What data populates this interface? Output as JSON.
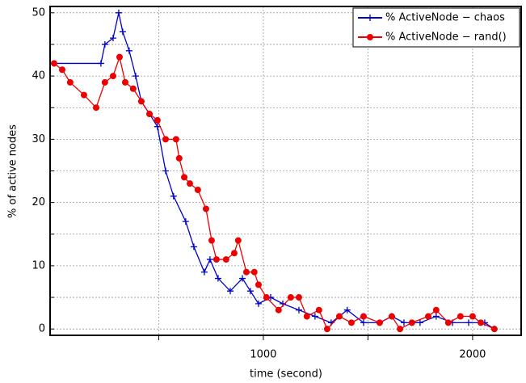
{
  "chart_data": {
    "type": "line",
    "xlabel": "time (second)",
    "ylabel": "% of active nodes",
    "xlim": [
      -19,
      2232
    ],
    "ylim": [
      -1,
      51
    ],
    "xticks": [
      1000,
      2000
    ],
    "x_minor_ticks": [
      500,
      1500
    ],
    "yticks": [
      0,
      10,
      20,
      30,
      40,
      50
    ],
    "y_minor_ticks": [
      5,
      15,
      25,
      35,
      45
    ],
    "grid": true,
    "legend": "upper right",
    "series": [
      {
        "name": "% ActiveNode − chaos",
        "color": "#0000cc",
        "marker": "plus",
        "x": [
          0,
          224,
          243,
          282,
          309,
          328,
          359,
          390,
          417,
          456,
          494,
          533,
          571,
          629,
          668,
          718,
          745,
          784,
          842,
          900,
          938,
          977,
          1035,
          1093,
          1170,
          1247,
          1324,
          1401,
          1479,
          1556,
          1614,
          1672,
          1749,
          1826,
          1904,
          1981,
          2058,
          2104
        ],
        "values": [
          42,
          42,
          45,
          46,
          50,
          47,
          44,
          40,
          36,
          34,
          32,
          25,
          21,
          17,
          13,
          9,
          11,
          8,
          6,
          8,
          6,
          4,
          5,
          4,
          3,
          2,
          1,
          3,
          1,
          1,
          2,
          1,
          1,
          2,
          1,
          1,
          1,
          0
        ]
      },
      {
        "name": "% ActiveNode − rand()",
        "color": "#ee0000",
        "marker": "circle",
        "x": [
          0,
          39,
          77,
          143,
          201,
          243,
          282,
          313,
          340,
          378,
          417,
          456,
          494,
          533,
          583,
          598,
          622,
          649,
          687,
          726,
          753,
          776,
          822,
          861,
          880,
          919,
          957,
          977,
          1015,
          1073,
          1131,
          1170,
          1208,
          1266,
          1305,
          1363,
          1421,
          1479,
          1556,
          1614,
          1653,
          1710,
          1788,
          1826,
          1884,
          1942,
          2000,
          2039,
          2104
        ],
        "values": [
          42,
          41,
          39,
          37,
          35,
          39,
          40,
          43,
          39,
          38,
          36,
          34,
          33,
          30,
          30,
          27,
          24,
          23,
          22,
          19,
          14,
          11,
          11,
          12,
          14,
          9,
          9,
          7,
          5,
          3,
          5,
          5,
          2,
          3,
          0,
          2,
          1,
          2,
          1,
          2,
          0,
          1,
          2,
          3,
          1,
          2,
          2,
          1,
          0
        ]
      }
    ]
  }
}
